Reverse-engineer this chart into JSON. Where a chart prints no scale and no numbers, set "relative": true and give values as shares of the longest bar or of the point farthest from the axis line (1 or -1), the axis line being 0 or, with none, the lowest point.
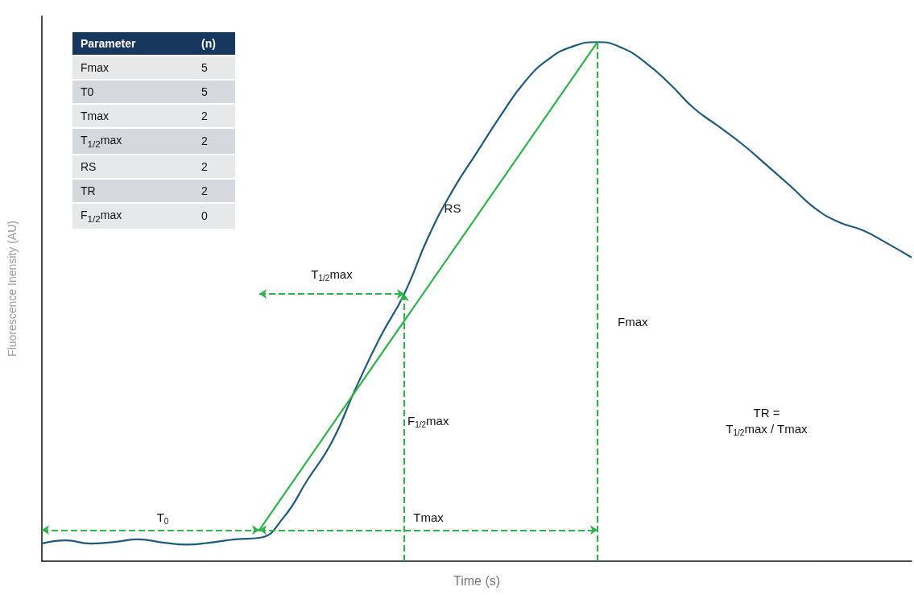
{
  "chart_data": [
    {
      "type": "line",
      "relative": true,
      "ylabel": "Fluorescence Inensity (AU)",
      "xlabel": "Time (s)",
      "grid": false,
      "marker": "none",
      "categories": [
        null,
        null,
        null,
        null,
        null,
        null,
        null,
        null,
        null,
        null,
        null,
        null,
        null,
        null,
        null,
        null,
        null,
        null,
        null,
        null,
        null,
        null,
        null,
        null,
        null,
        null,
        null,
        null,
        null,
        null,
        null,
        null,
        null,
        null,
        null,
        null,
        null
      ],
      "series": [
        {
          "color": "#1f5a7a",
          "values": [
            0.034,
            0.04,
            0.034,
            0.037,
            0.042,
            0.036,
            0.032,
            0.036,
            0.042,
            0.045,
            0.084,
            0.157,
            0.229,
            0.334,
            0.431,
            0.515,
            0.625,
            0.714,
            0.787,
            0.859,
            0.924,
            0.968,
            0.992,
            1,
            0.989,
            0.96,
            0.919,
            0.872,
            0.838,
            0.803,
            0.763,
            0.722,
            0.68,
            0.653,
            0.637,
            0.612,
            0.585
          ]
        },
        {
          "color": "#2db34a",
          "values": [
            null,
            null,
            null,
            null,
            null,
            null,
            null,
            null,
            null,
            0.06,
            null,
            null,
            null,
            null,
            null,
            null,
            null,
            null,
            null,
            null,
            null,
            null,
            null,
            1,
            null,
            null,
            null,
            null,
            null,
            null,
            null,
            null,
            null,
            null,
            null,
            null,
            null
          ]
        }
      ],
      "annotations": [
        "T$_{0}$",
        "Tmax",
        "Fmax",
        "F$_{1/2}$max",
        "T$_{1/2}$max",
        "RS",
        "TR =\nT$_{1/2}$max / Tmax"
      ]
    },
    {
      "type": "other",
      "data_labels": true,
      "xlabel": "Parameter",
      "ylabel": "(n)",
      "categories": [
        "Fmax",
        "T0",
        "Tmax",
        "T$_{1/2}$max",
        "RS",
        "TR",
        "F$_{1/2}$max"
      ],
      "values": [
        5,
        5,
        2,
        2,
        2,
        2,
        0
      ]
    }
  ]
}
